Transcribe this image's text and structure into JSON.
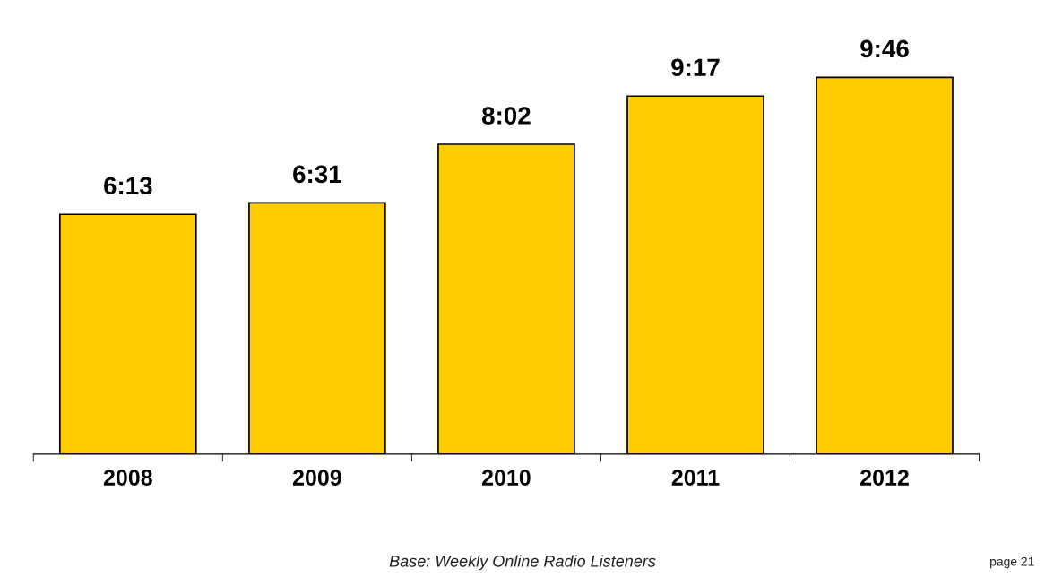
{
  "chart_data": {
    "type": "bar",
    "categories": [
      "2008",
      "2009",
      "2010",
      "2011",
      "2012"
    ],
    "values": [
      6.2167,
      6.5167,
      8.0333,
      9.2833,
      9.7667
    ],
    "value_labels": [
      "6:13",
      "6:31",
      "8:02",
      "9:17",
      "9:46"
    ],
    "color": "#ffcc00",
    "grid": false,
    "legend": false,
    "annotations": [
      "Base: Weekly Online Radio Listeners",
      "page 21"
    ]
  }
}
